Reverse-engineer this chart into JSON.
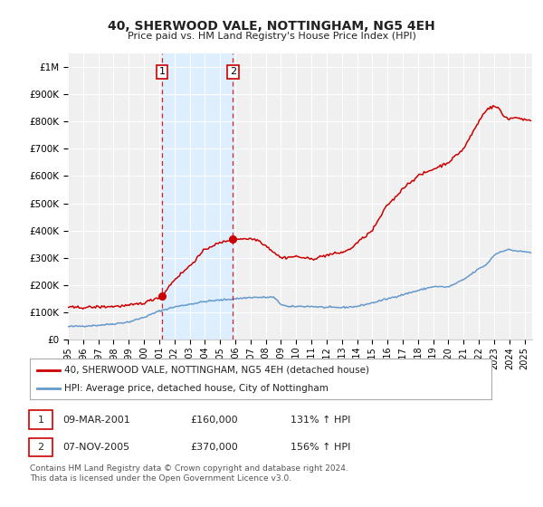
{
  "title": "40, SHERWOOD VALE, NOTTINGHAM, NG5 4EH",
  "subtitle": "Price paid vs. HM Land Registry's House Price Index (HPI)",
  "legend_label_red": "40, SHERWOOD VALE, NOTTINGHAM, NG5 4EH (detached house)",
  "legend_label_blue": "HPI: Average price, detached house, City of Nottingham",
  "transaction1_label": "1",
  "transaction1_date": "09-MAR-2001",
  "transaction1_price": "£160,000",
  "transaction1_hpi": "131% ↑ HPI",
  "transaction1_year": 2001.18,
  "transaction1_value": 160000,
  "transaction2_label": "2",
  "transaction2_date": "07-NOV-2005",
  "transaction2_price": "£370,000",
  "transaction2_hpi": "156% ↑ HPI",
  "transaction2_year": 2005.85,
  "transaction2_value": 370000,
  "footer_line1": "Contains HM Land Registry data © Crown copyright and database right 2024.",
  "footer_line2": "This data is licensed under the Open Government Licence v3.0.",
  "background_color": "#ffffff",
  "plot_bg_color": "#f0f0f0",
  "red_color": "#cc0000",
  "blue_color": "#6699cc",
  "shade_color": "#ddeeff",
  "grid_color": "#ffffff",
  "ylim_max": 1050000,
  "xlim_start": 1995.0,
  "xlim_end": 2025.5,
  "title_fontsize": 10,
  "subtitle_fontsize": 8,
  "tick_fontsize": 7,
  "ytick_fontsize": 7.5,
  "legend_fontsize": 7.5,
  "table_fontsize": 8,
  "footer_fontsize": 6.5
}
